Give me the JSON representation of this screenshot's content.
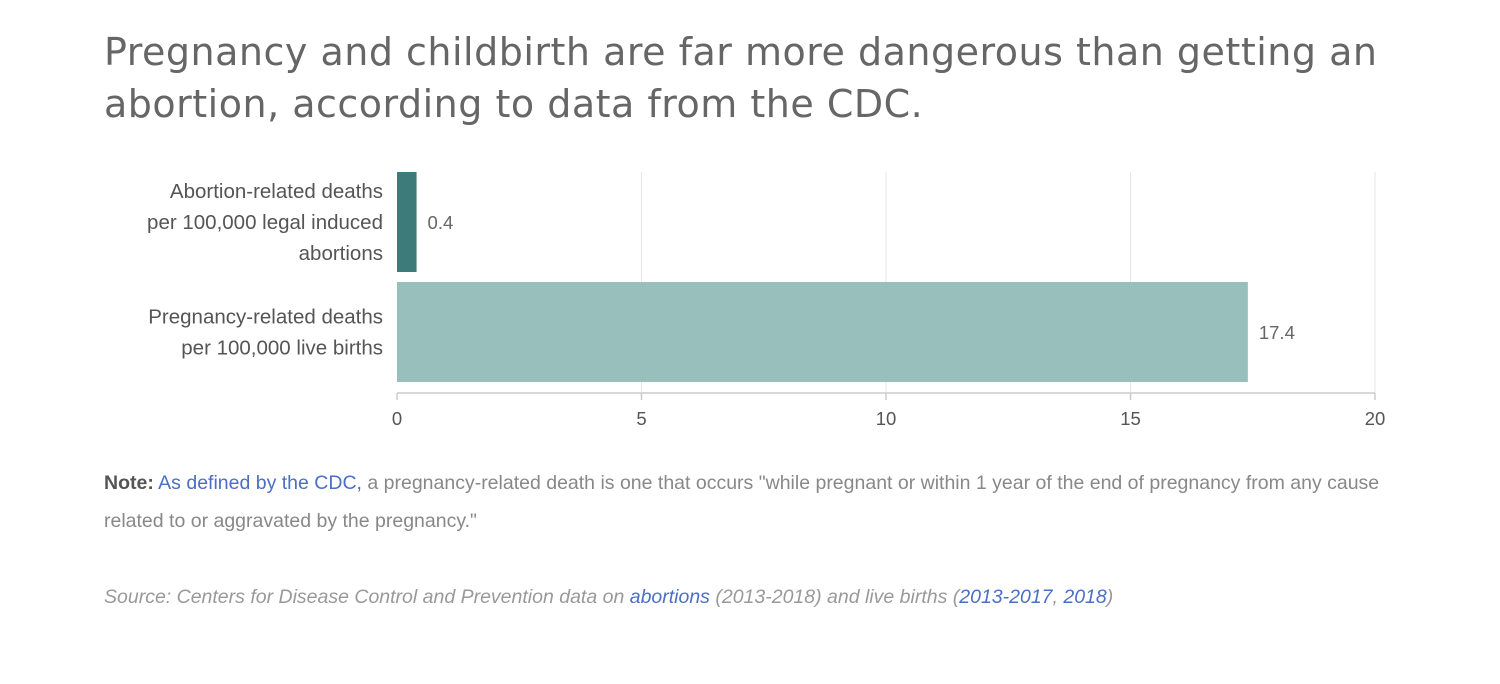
{
  "title": "Pregnancy and childbirth are far more dangerous than getting an abortion, according to data from the CDC.",
  "chart_data": {
    "type": "bar",
    "orientation": "horizontal",
    "categories": [
      "Abortion-related deaths per 100,000 legal induced abortions",
      "Pregnancy-related deaths per 100,000 live births"
    ],
    "category_lines": [
      [
        "Abortion-related deaths",
        "per 100,000 legal induced",
        "abortions"
      ],
      [
        "Pregnancy-related deaths",
        "per 100,000 live births"
      ]
    ],
    "values": [
      0.4,
      17.4
    ],
    "data_labels": [
      "0.4",
      "17.4"
    ],
    "colors": [
      "#3d7b7a",
      "#99bfbd"
    ],
    "xlim": [
      0,
      20
    ],
    "xticks": [
      0,
      5,
      10,
      15,
      20
    ],
    "grid": true,
    "xlabel": "",
    "ylabel": ""
  },
  "note": {
    "label": "Note:",
    "link_text": "As defined by the CDC,",
    "text": " a pregnancy-related death is one that occurs \"while pregnant or within 1 year of the end of pregnancy from any cause related to or aggravated by the pregnancy.\""
  },
  "source": {
    "prefix": "Source: Centers for Disease Control and Prevention data on ",
    "link_abortions": "abortions",
    "middle": " (2013-2018) and live births (",
    "link_2013_2017": "2013-2017",
    "separator": ", ",
    "link_2018": "2018",
    "suffix": ")"
  },
  "colors": {
    "axis": "#cccccc",
    "grid": "#e6e6e6",
    "link": "#4a6fc3"
  }
}
